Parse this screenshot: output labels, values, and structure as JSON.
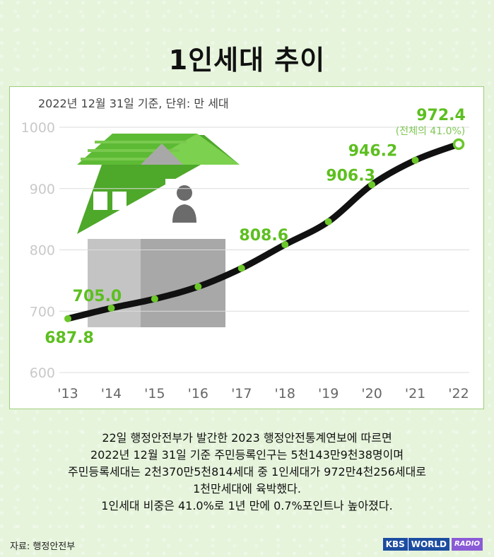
{
  "title": "1인세대 추이",
  "chart_data": {
    "type": "line",
    "note": "2022년 12월 31일 기준, 단위: 만 세대",
    "categories": [
      "'13",
      "'14",
      "'15",
      "'16",
      "'17",
      "'18",
      "'19",
      "'20",
      "'21",
      "'22"
    ],
    "series": [
      {
        "values": [
          687.8,
          705.0,
          720,
          740,
          770,
          808.6,
          846,
          906.3,
          946.2,
          972.4
        ]
      }
    ],
    "data_labels": [
      {
        "index": 0,
        "text": "687.8"
      },
      {
        "index": 1,
        "text": "705.0"
      },
      {
        "index": 5,
        "text": "808.6"
      },
      {
        "index": 7,
        "text": "906.3"
      },
      {
        "index": 8,
        "text": "946.2"
      },
      {
        "index": 9,
        "text": "972.4"
      }
    ],
    "last_annotation": "(전체의 41.0%)",
    "ylim": [
      600,
      1000
    ],
    "yticks": [
      "600",
      "700",
      "800",
      "900",
      "1000"
    ],
    "grid": true,
    "colors": {
      "line": "#111111",
      "marker": "#6cc72a",
      "label": "#5cbf1f",
      "grid": "#dcdcdc"
    }
  },
  "body_lines": [
    "22일 행정안전부가 발간한 2023 행정안전통계연보에 따르면",
    "2022년 12월 31일 기준 주민등록인구는 5천143만9천38명이며",
    "주민등록세대는 2천370만5천814세대 중 1인세대가 972만4천256세대로",
    "1천만세대에 육박했다.",
    "1인세대 비중은 41.0%로 1년 만에 0.7%포인트나 높아졌다."
  ],
  "source": "자료: 행정안전부",
  "logo": {
    "kbs": "KBS",
    "world": "WORLD",
    "radio": "RADIO"
  }
}
